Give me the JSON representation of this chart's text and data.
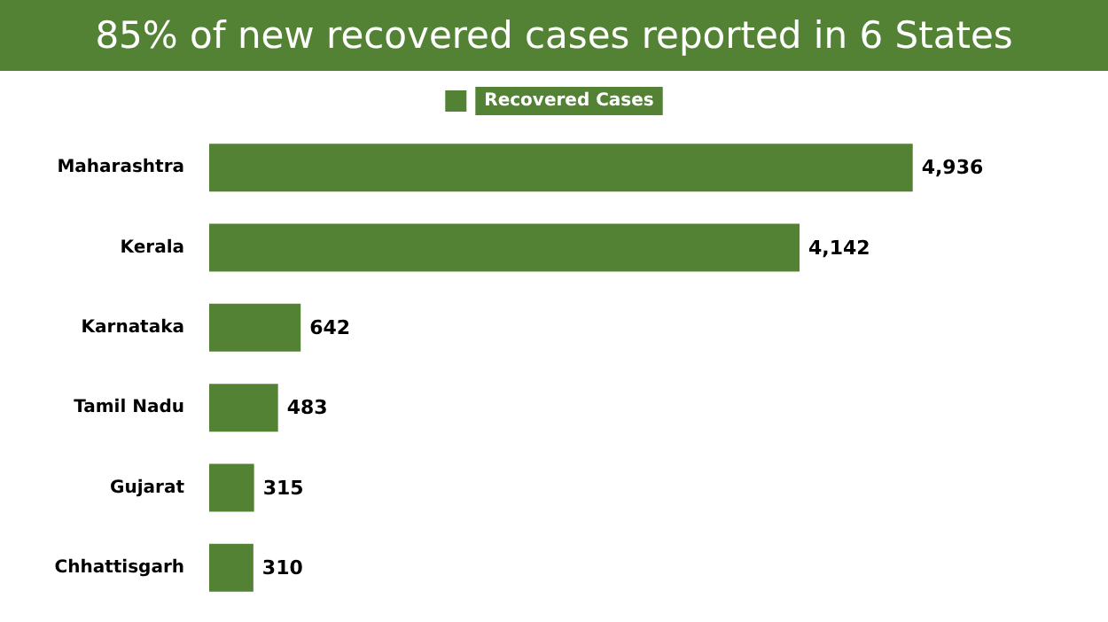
{
  "chart_data": {
    "type": "bar",
    "orientation": "horizontal",
    "title": "85% of new recovered cases reported in 6 States",
    "categories": [
      "Maharashtra",
      "Kerala",
      "Karnataka",
      "Tamil Nadu",
      "Gujarat",
      "Chhattisgarh"
    ],
    "series": [
      {
        "name": "Recovered Cases",
        "color": "#548235",
        "values": [
          4936,
          4142,
          642,
          483,
          315,
          310
        ],
        "value_labels": [
          "4,936",
          "4,142",
          "642",
          "483",
          "315",
          "310"
        ]
      }
    ],
    "legend": "top"
  }
}
